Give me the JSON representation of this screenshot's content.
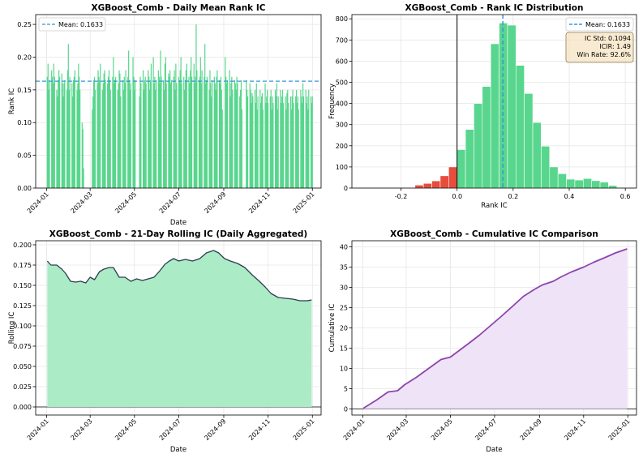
{
  "chart_data": [
    {
      "type": "bar",
      "title": "XGBoost_Comb - Daily Mean Rank IC",
      "xlabel": "Date",
      "ylabel": "Rank IC",
      "xlim": [
        "2023-12-17",
        "2025-01-13"
      ],
      "ylim": [
        0,
        0.265
      ],
      "xticks": [
        "2024-01",
        "2024-03",
        "2024-05",
        "2024-07",
        "2024-09",
        "2024-11",
        "2025-01"
      ],
      "yticks": [
        "0.00",
        "0.05",
        "0.10",
        "0.15",
        "0.20",
        "0.25"
      ],
      "grid": true,
      "bar_color": "#58d68d",
      "x_start": "2024-01-02",
      "weekday_values": [
        0.17,
        0.19,
        0.15,
        0.165,
        0.18,
        0.17,
        0.16,
        0.19,
        0.17,
        0.15,
        0.14,
        0.165,
        0.18,
        0.17,
        0.175,
        0.16,
        0.14,
        0.16,
        0.165,
        0.15,
        0.18,
        0.22,
        0.15,
        0.17,
        0.16,
        0.14,
        0.165,
        0.17,
        0.18,
        0.15,
        0.16,
        0.19,
        0.17,
        0.15,
        0.1,
        0.09,
        0.03,
        null,
        null,
        null,
        null,
        null,
        null,
        null,
        0.12,
        0.14,
        0.165,
        0.17,
        0.15,
        0.16,
        0.18,
        0.17,
        0.165,
        0.19,
        0.15,
        0.16,
        0.175,
        0.18,
        0.165,
        0.16,
        0.17,
        0.18,
        0.165,
        0.15,
        0.17,
        0.2,
        0.16,
        0.165,
        0.17,
        0.15,
        0.16,
        0.18,
        0.175,
        0.14,
        0.165,
        0.15,
        0.17,
        0.16,
        0.18,
        0.17,
        0.21,
        0.165,
        0.15,
        0.16,
        0.2,
        0.17,
        0.15,
        0.165,
        null,
        null,
        null,
        0.14,
        0.17,
        0.16,
        0.18,
        0.15,
        0.165,
        0.17,
        0.16,
        0.18,
        0.17,
        0.15,
        0.165,
        0.19,
        0.2,
        0.16,
        0.17,
        0.15,
        0.165,
        0.18,
        0.17,
        0.16,
        0.21,
        0.17,
        0.165,
        0.15,
        0.19,
        0.2,
        0.16,
        0.175,
        0.17,
        0.18,
        0.16,
        0.165,
        0.17,
        0.18,
        0.15,
        0.19,
        0.16,
        0.17,
        0.165,
        0.18,
        0.2,
        0.16,
        0.17,
        0.15,
        0.165,
        0.18,
        0.19,
        0.17,
        0.16,
        0.18,
        0.2,
        0.17,
        0.19,
        0.16,
        0.17,
        0.25,
        0.18,
        0.165,
        0.17,
        0.2,
        0.16,
        0.18,
        0.17,
        0.22,
        0.16,
        0.165,
        0.17,
        0.15,
        0.18,
        0.16,
        0.14,
        0.165,
        0.17,
        0.16,
        0.15,
        0.17,
        0.18,
        0.165,
        0.16,
        0.17,
        0.15,
        0.12,
        null,
        0.2,
        0.17,
        0.16,
        0.165,
        0.18,
        0.14,
        0.16,
        0.17,
        0.15,
        0.165,
        0.16,
        0.15,
        0.17,
        0.16,
        0.14,
        0.15,
        0.165,
        0.12,
        null,
        null,
        null,
        0.165,
        0.15,
        0.14,
        0.16,
        0.15,
        0.13,
        0.145,
        0.14,
        0.15,
        0.13,
        0.16,
        0.12,
        0.14,
        0.15,
        0.13,
        0.14,
        0.145,
        0.12,
        0.16,
        0.13,
        0.14,
        0.15,
        0.13,
        0.14,
        0.15,
        0.12,
        0.14,
        0.13,
        0.15,
        0.14,
        0.16,
        0.12,
        0.14,
        0.15,
        0.13,
        0.14,
        0.15,
        0.13,
        0.14,
        0.12,
        0.145,
        0.15,
        0.13,
        0.14,
        0.12,
        0.14,
        0.15,
        0.13,
        0.14,
        0.15,
        0.13,
        0.14,
        0.12,
        0.15,
        0.14,
        0.13,
        0.16,
        0.14,
        0.15,
        0.13,
        0.14,
        0.12,
        0.15,
        0.14,
        0.13,
        0.14
      ],
      "mean": 0.1633,
      "mean_label": "Mean: 0.1633",
      "mean_color": "#3498db",
      "legend": "upper-left"
    },
    {
      "type": "histogram",
      "title": "XGBoost_Comb - Rank IC Distribution",
      "xlabel": "Rank IC",
      "ylabel": "Frequency",
      "xlim": [
        -0.375,
        0.64
      ],
      "ylim": [
        0,
        820
      ],
      "xticks": [
        -0.2,
        0.0,
        0.2,
        0.4,
        0.6
      ],
      "xtick_labels": [
        "-0.2",
        "0.0",
        "0.2",
        "0.4",
        "0.6"
      ],
      "yticks": [
        0,
        100,
        200,
        300,
        400,
        500,
        600,
        700,
        800
      ],
      "grid": true,
      "bin_edges": [
        -0.3,
        -0.27,
        -0.24,
        -0.21,
        -0.18,
        -0.15,
        -0.12,
        -0.09,
        -0.06,
        -0.03,
        0.0,
        0.03,
        0.06,
        0.09,
        0.12,
        0.15,
        0.18,
        0.21,
        0.24,
        0.27,
        0.3,
        0.33,
        0.36,
        0.39,
        0.42,
        0.45,
        0.48,
        0.51,
        0.54,
        0.57,
        0.6
      ],
      "counts": [
        0,
        0,
        0,
        0,
        2,
        14,
        22,
        34,
        58,
        100,
        182,
        277,
        400,
        480,
        682,
        780,
        770,
        580,
        447,
        310,
        198,
        100,
        68,
        42,
        38,
        45,
        35,
        28,
        12,
        3
      ],
      "positive_color": "#58d68d",
      "negative_color": "#e74c3c",
      "zero_line_color": "#000000",
      "mean": 0.1633,
      "mean_label": "Mean: 0.1633",
      "mean_color": "#3498db",
      "legend": "upper-right",
      "stats_box": [
        "IC Std: 0.1094",
        "ICIR: 1.49",
        "Win Rate: 92.6%"
      ],
      "stats_box_color": "#f5deb3"
    },
    {
      "type": "area",
      "title": "XGBoost_Comb - 21-Day Rolling IC (Daily Aggregated)",
      "xlabel": "Date",
      "ylabel": "Rolling IC",
      "xlim": [
        "2023-12-17",
        "2025-01-13"
      ],
      "ylim": [
        -0.01,
        0.205
      ],
      "xticks": [
        "2024-01",
        "2024-03",
        "2024-05",
        "2024-07",
        "2024-09",
        "2024-11",
        "2025-01"
      ],
      "yticks": [
        "0.000",
        "0.025",
        "0.050",
        "0.075",
        "0.100",
        "0.125",
        "0.150",
        "0.175",
        "0.200"
      ],
      "grid": true,
      "x": [
        "2024-01-02",
        "2024-01-07",
        "2024-01-15",
        "2024-01-22",
        "2024-01-27",
        "2024-02-03",
        "2024-02-10",
        "2024-02-17",
        "2024-02-24",
        "2024-03-01",
        "2024-03-07",
        "2024-03-14",
        "2024-03-20",
        "2024-03-27",
        "2024-04-02",
        "2024-04-10",
        "2024-04-18",
        "2024-04-26",
        "2024-05-04",
        "2024-05-12",
        "2024-05-20",
        "2024-05-28",
        "2024-06-05",
        "2024-06-12",
        "2024-06-18",
        "2024-06-24",
        "2024-07-01",
        "2024-07-10",
        "2024-07-20",
        "2024-07-30",
        "2024-08-08",
        "2024-08-18",
        "2024-08-25",
        "2024-09-02",
        "2024-09-10",
        "2024-09-20",
        "2024-09-30",
        "2024-10-10",
        "2024-10-20",
        "2024-10-28",
        "2024-11-05",
        "2024-11-15",
        "2024-11-25",
        "2024-12-05",
        "2024-12-15",
        "2024-12-25",
        "2024-12-31"
      ],
      "y": [
        0.18,
        0.175,
        0.175,
        0.17,
        0.165,
        0.155,
        0.154,
        0.155,
        0.153,
        0.16,
        0.157,
        0.167,
        0.17,
        0.172,
        0.172,
        0.16,
        0.16,
        0.155,
        0.158,
        0.156,
        0.158,
        0.16,
        0.168,
        0.176,
        0.18,
        0.183,
        0.18,
        0.182,
        0.18,
        0.183,
        0.19,
        0.193,
        0.19,
        0.183,
        0.18,
        0.177,
        0.172,
        0.163,
        0.155,
        0.148,
        0.14,
        0.135,
        0.134,
        0.133,
        0.131,
        0.131,
        0.132
      ],
      "line_color": "#2c3e50",
      "fill_color": "#abebc6"
    },
    {
      "type": "area",
      "title": "XGBoost_Comb - Cumulative IC Comparison",
      "xlabel": "Date",
      "ylabel": "Cumulative IC",
      "xlim": [
        "2023-12-17",
        "2025-01-13"
      ],
      "ylim": [
        -1.5,
        41.5
      ],
      "xticks": [
        "2024-01",
        "2024-03",
        "2024-05",
        "2024-07",
        "2024-09",
        "2024-11",
        "2025-01"
      ],
      "yticks": [
        "0",
        "5",
        "10",
        "15",
        "20",
        "25",
        "30",
        "35",
        "40"
      ],
      "grid": true,
      "x": [
        "2024-01-02",
        "2024-01-20",
        "2024-02-05",
        "2024-02-18",
        "2024-02-28",
        "2024-03-15",
        "2024-04-01",
        "2024-04-18",
        "2024-05-01",
        "2024-05-10",
        "2024-05-25",
        "2024-06-10",
        "2024-06-25",
        "2024-07-10",
        "2024-07-25",
        "2024-08-10",
        "2024-08-25",
        "2024-09-05",
        "2024-09-20",
        "2024-10-01",
        "2024-10-15",
        "2024-11-01",
        "2024-11-15",
        "2024-12-01",
        "2024-12-15",
        "2024-12-31"
      ],
      "y": [
        0.2,
        2.2,
        4.2,
        4.5,
        6.0,
        7.8,
        10.0,
        12.2,
        12.8,
        14.0,
        16.0,
        18.2,
        20.5,
        22.8,
        25.2,
        27.8,
        29.5,
        30.6,
        31.5,
        32.6,
        33.8,
        35.0,
        36.2,
        37.4,
        38.5,
        39.5
      ],
      "line_color": "#8e44ad",
      "fill_color": "#efe3f7"
    }
  ]
}
